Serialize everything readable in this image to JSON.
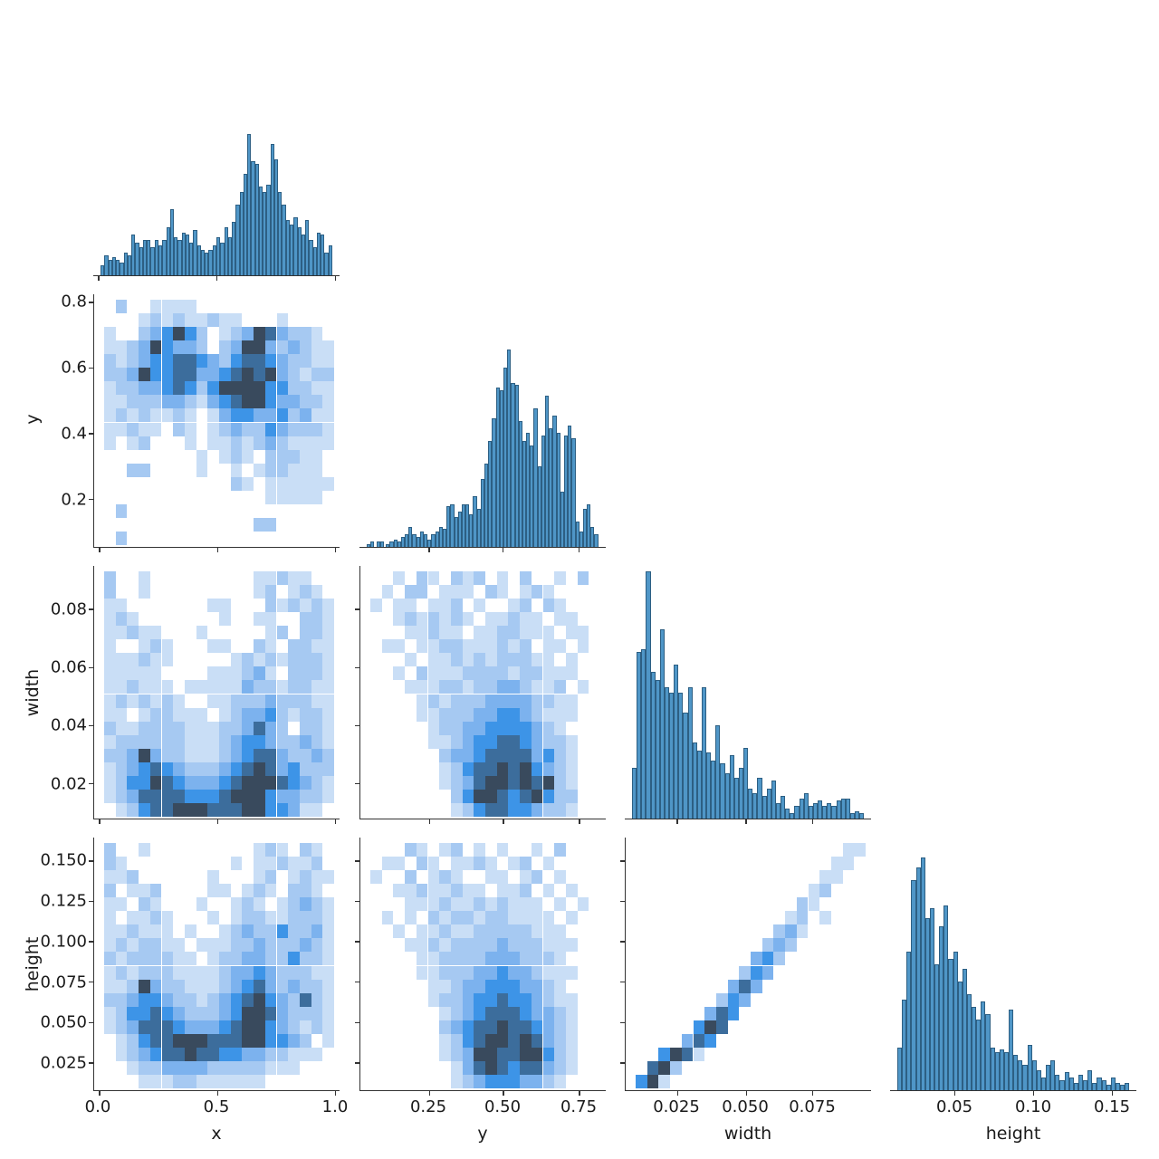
{
  "palette": {
    "background": "#ffffff",
    "heat": [
      "#ffffff",
      "#c9def6",
      "#a6c9f2",
      "#7cb2ee",
      "#3d94e7",
      "#3c6d9c",
      "#394a5d"
    ],
    "bar_fill": "#4f96c7",
    "bar_edge": "#2d5f83",
    "axis_color": "#333333"
  },
  "chart_data": {
    "type": "pairplot",
    "variables": [
      "x",
      "y",
      "width",
      "height"
    ],
    "layout": "corner pairplot: histograms on diagonal (shared count scale), bivariate blue density histograms on lower triangle",
    "grid": "off",
    "legend": "none",
    "axes": {
      "bottom": [
        {
          "var": "x",
          "labels": [
            "0.0",
            "0.5",
            "1.0"
          ],
          "range": [
            0.0,
            1.0
          ]
        },
        {
          "var": "y",
          "labels": [
            "0.25",
            "0.50",
            "0.75"
          ],
          "range": [
            0.06,
            0.83
          ]
        },
        {
          "var": "width",
          "labels": [
            "0.025",
            "0.050",
            "0.075"
          ],
          "range": [
            0.012,
            0.093
          ]
        },
        {
          "var": "height",
          "labels": [
            "0.05",
            "0.10",
            "0.15"
          ],
          "range": [
            0.018,
            0.162
          ]
        }
      ],
      "left": [
        {
          "var": "y",
          "labels": [
            "0.8",
            "0.6",
            "0.4",
            "0.2"
          ]
        },
        {
          "var": "width",
          "labels": [
            "0.08",
            "0.06",
            "0.04",
            "0.02"
          ]
        },
        {
          "var": "height",
          "labels": [
            "0.150",
            "0.125",
            "0.100",
            "0.075",
            "0.050",
            "0.025"
          ]
        }
      ]
    },
    "density_levels": "grid digits: 0=empty white, 1=lightest blue ... 6=darkest slate",
    "panels": {
      "hist_x": {
        "type": "histogram",
        "var": "x",
        "bar_heights": [
          0.04,
          0.08,
          0.06,
          0.07,
          0.06,
          0.05,
          0.09,
          0.08,
          0.16,
          0.13,
          0.11,
          0.14,
          0.14,
          0.11,
          0.14,
          0.12,
          0.14,
          0.19,
          0.26,
          0.15,
          0.14,
          0.17,
          0.16,
          0.13,
          0.18,
          0.12,
          0.1,
          0.09,
          0.1,
          0.12,
          0.15,
          0.13,
          0.19,
          0.15,
          0.21,
          0.28,
          0.33,
          0.4,
          0.56,
          0.45,
          0.44,
          0.35,
          0.33,
          0.36,
          0.52,
          0.46,
          0.33,
          0.28,
          0.22,
          0.2,
          0.23,
          0.19,
          0.16,
          0.22,
          0.14,
          0.11,
          0.17,
          0.16,
          0.09,
          0.12
        ]
      },
      "hist_y": {
        "type": "histogram",
        "var": "y",
        "bar_heights": [
          0.01,
          0.02,
          0,
          0.02,
          0.02,
          0,
          0.01,
          0.02,
          0.03,
          0.02,
          0.04,
          0.05,
          0.08,
          0.05,
          0.04,
          0.06,
          0.05,
          0.03,
          0.05,
          0.06,
          0.08,
          0.07,
          0.16,
          0.17,
          0.12,
          0.14,
          0.17,
          0.17,
          0.13,
          0.2,
          0.15,
          0.27,
          0.33,
          0.42,
          0.51,
          0.63,
          0.62,
          0.71,
          0.78,
          0.65,
          0.64,
          0.5,
          0.42,
          0.45,
          0.4,
          0.55,
          0.32,
          0.44,
          0.6,
          0.47,
          0.52,
          0.45,
          0.22,
          0.44,
          0.48,
          0.43,
          0.1,
          0.06,
          0.15,
          0.17,
          0.08,
          0.05
        ]
      },
      "hist_width": {
        "type": "histogram",
        "var": "width",
        "bar_heights": [
          0.2,
          0.66,
          0.67,
          0.98,
          0.58,
          0.55,
          0.75,
          0.52,
          0.5,
          0.61,
          0.5,
          0.42,
          0.52,
          0.3,
          0.27,
          0.52,
          0.26,
          0.23,
          0.37,
          0.22,
          0.18,
          0.25,
          0.16,
          0.2,
          0.28,
          0.12,
          0.1,
          0.16,
          0.09,
          0.12,
          0.15,
          0.06,
          0.09,
          0.04,
          0.02,
          0.05,
          0.08,
          0.1,
          0.05,
          0.06,
          0.07,
          0.05,
          0.06,
          0.05,
          0.07,
          0.08,
          0.08,
          0.02,
          0.03,
          0.02
        ]
      },
      "hist_height": {
        "type": "histogram",
        "var": "height",
        "bar_heights": [
          0.17,
          0.36,
          0.55,
          0.83,
          0.88,
          0.92,
          0.68,
          0.72,
          0.5,
          0.65,
          0.73,
          0.52,
          0.55,
          0.43,
          0.48,
          0.38,
          0.33,
          0.28,
          0.35,
          0.3,
          0.17,
          0.15,
          0.16,
          0.15,
          0.32,
          0.14,
          0.12,
          0.1,
          0.18,
          0.12,
          0.08,
          0.05,
          0.1,
          0.12,
          0.06,
          0.04,
          0.07,
          0.05,
          0.03,
          0.06,
          0.04,
          0.08,
          0.03,
          0.05,
          0.04,
          0.02,
          0.05,
          0.03,
          0.02,
          0.03
        ]
      },
      "hist2d_x_y": {
        "type": "hist2d",
        "x_var": "x",
        "y_var": "y",
        "grid": [
          "02001111000000000000",
          "00012121121100010000",
          "10023464201236532210",
          "11236433202366323211",
          "21234455432455432211",
          "22364455334565632122",
          "12233454246666442211",
          "11222332134566433221",
          "12121121013443342311",
          "11211021012322432221",
          "10120001011212321111",
          "00000000101210222110",
          "00220000100101221110",
          "00000000000210111111",
          "00000000000000111110",
          "02000000000000000000",
          "00000000000002200000",
          "02000000000000000000"
        ]
      },
      "hist2d_x_width": {
        "type": "hist2d",
        "x_var": "x",
        "y_var": "width",
        "grid": [
          "20010000000001121100",
          "20010000000001201210",
          "11000000011000212121",
          "12100000001001100221",
          "11211000100000120221",
          "10012100011002102211",
          "11121100000121212221",
          "11111000011123102221",
          "11211101111132212211",
          "12121210011222322211",
          "11012211101233421221",
          "21122221112235320221",
          "12222221112344322321",
          "22363221112345532232",
          "12345432223456534222",
          "12446543334566654321",
          "12355554445666433221",
          "01245566655566443110"
        ]
      },
      "hist2d_x_height": {
        "type": "hist2d",
        "x_var": "x",
        "y_var": "height",
        "grid": [
          "20010000000001210210",
          "21000000000101121120",
          "11200000010001201211",
          "20112000011012102210",
          "11021000100121012321",
          "10112100010122112221",
          "11211101001232242231",
          "12122110111223222321",
          "21222211012233224221",
          "12122211112334322211",
          "11263221112345323221",
          "22344322123456432521",
          "12445432223466532221",
          "12355543334566432121",
          "01245566655566443201",
          "01234556554433221110",
          "00122333322222111000",
          "00011122111111000000"
        ]
      },
      "hist2d_y_width": {
        "type": "hist2d",
        "x_var": "y",
        "y_var": "width",
        "grid": [
          "00102102120102001020",
          "01022011102101210000",
          "10110112010012021000",
          "00121212101121101100",
          "00011211011221110110",
          "01101122111212011010",
          "00010112121222110100",
          "00102111222212211100",
          "00011122122332112010",
          "00001212223333221100",
          "00001122233443211100",
          "00000122334444321000",
          "00000112344554322100",
          "00000023345555342100",
          "00000012455656432100",
          "00000012356656562100",
          "00000002466545642200",
          "00000001245544322100"
        ]
      },
      "hist2d_y_height": {
        "type": "hist2d",
        "x_var": "y",
        "y_var": "height",
        "grid": [
          "00021012010100102000",
          "01102101121012010000",
          "10020121001101201000",
          "00112112110112010100",
          "00011121121211101010",
          "01010212212211110100",
          "00101121122222111000",
          "00011212222322211100",
          "00001122223332221000",
          "00001122233433211100",
          "00000112334443321000",
          "00000122344544321100",
          "00000012345554332100",
          "00000023455655432100",
          "00000012456656532100",
          "00000012366556642100",
          "00000001356545532100",
          "00000001234443321000"
        ]
      },
      "hist2d_width_height": {
        "type": "hist2d",
        "x_var": "width",
        "y_var": "height",
        "correlation": "strong positive, narrow diagonal band, densest at low values",
        "grid": [
          "00000000000000000011",
          "00000000000000000110",
          "00000000000000001100",
          "00000000000000012000",
          "00000000000000210000",
          "00000000000001201000",
          "00000000000023100000",
          "00000000000232000000",
          "00000000003420000000",
          "00000000024300000000",
          "00000000353000000000",
          "00000002430000000000",
          "00000035400000000000",
          "00000465000000000000",
          "00003540000000000000",
          "00465100000000000000",
          "05620000000000000000",
          "46100000000000000000"
        ]
      }
    }
  }
}
